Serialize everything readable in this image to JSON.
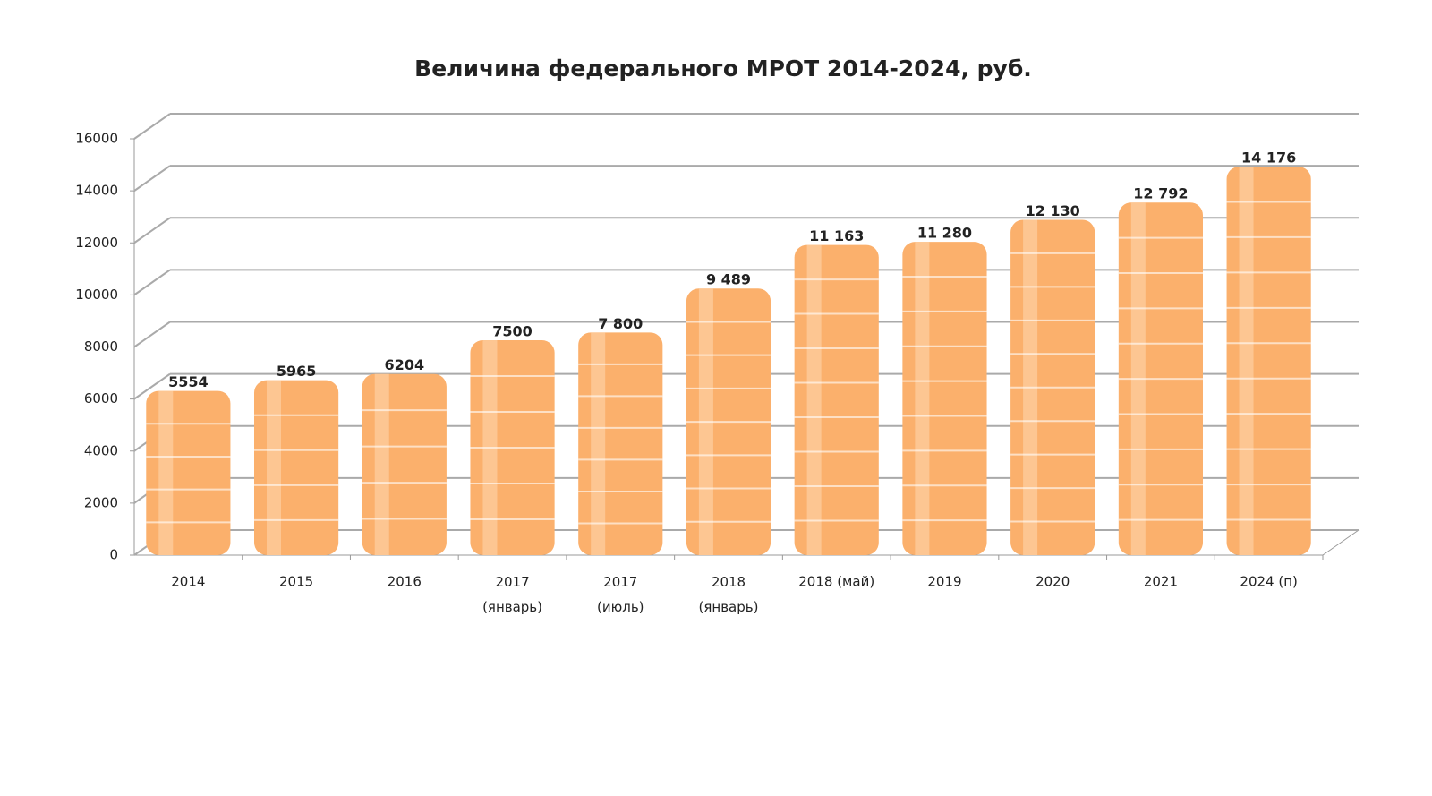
{
  "chart_data": {
    "type": "bar",
    "title": "Величина федерального МРОТ 2014-2024, руб.",
    "categories": [
      "2014",
      "2015",
      "2016",
      "2017\n(январь)",
      "2017\n(июль)",
      "2018\n(январь)",
      "2018 (май)",
      "2019",
      "2020",
      "2021",
      "2024 (п)"
    ],
    "values": [
      5554,
      5965,
      6204,
      7500,
      7800,
      9489,
      11163,
      11280,
      12130,
      12792,
      14176
    ],
    "value_labels": [
      "5554",
      "5965",
      "6204",
      "7500",
      "7 800",
      "9 489",
      "11 163",
      "11 280",
      "12 130",
      "12 792",
      "14 176"
    ],
    "color": "#fbb06c",
    "ylim": [
      0,
      16000
    ],
    "yticks": [
      0,
      2000,
      4000,
      6000,
      8000,
      10000,
      12000,
      14000,
      16000
    ],
    "grid": true
  }
}
